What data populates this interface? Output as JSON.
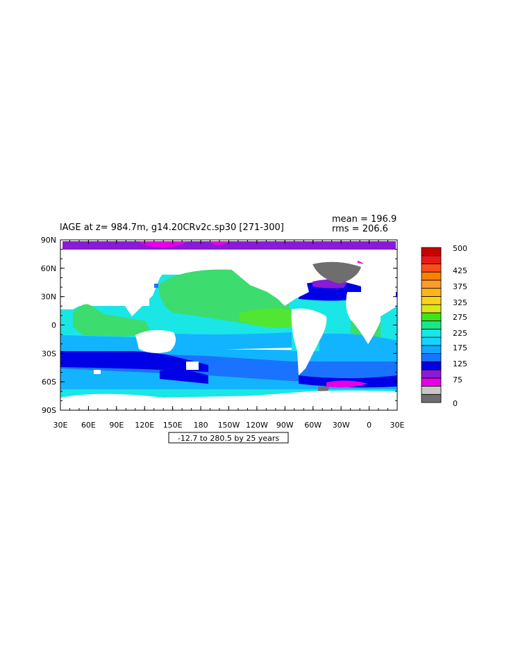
{
  "title": "lAGE at z= 984.7m, g14.20CRv2c.sp30 [271-300]",
  "stats": {
    "mean": "mean = 196.9",
    "rms": "rms = 206.6"
  },
  "contour_note": "-12.7 to 280.5 by 25 years",
  "y_ticks": [
    "90N",
    "60N",
    "30N",
    "0",
    "30S",
    "60S",
    "90S"
  ],
  "x_ticks": [
    "30E",
    "60E",
    "90E",
    "120E",
    "150E",
    "180",
    "150W",
    "120W",
    "90W",
    "60W",
    "30W",
    "0",
    "30E"
  ],
  "colorbar": {
    "labels": [
      "500",
      "425",
      "375",
      "325",
      "275",
      "225",
      "175",
      "125",
      "75",
      "0"
    ],
    "colors_bottom_to_top": [
      "#6e6e6e",
      "#c8c8c8",
      "#e600e6",
      "#8a1ad6",
      "#0000e6",
      "#1a73ff",
      "#13a8ff",
      "#1ad2ff",
      "#1ae6e6",
      "#1ae68c",
      "#3de61a",
      "#dce61a",
      "#ffd21a",
      "#ffb41a",
      "#ff9b2d",
      "#ff8000",
      "#ff4d1a",
      "#e61a1a",
      "#c80000"
    ]
  },
  "colors": {
    "land": "#ffffff",
    "green": "#3cdc6e",
    "lime": "#50e632",
    "cyan": "#1ae6e6",
    "lightblue": "#13b4ff",
    "blue": "#1a73ff",
    "darkblue": "#0000e6",
    "purple": "#8a1ad6",
    "magenta": "#e600e6",
    "grey": "#6e6e6e",
    "lightgrey": "#c8c8c8"
  }
}
